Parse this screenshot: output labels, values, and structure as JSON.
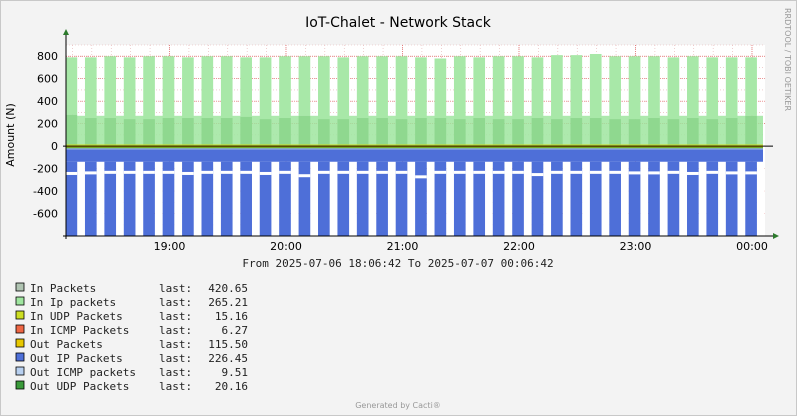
{
  "chart_data": {
    "type": "area",
    "title": "IoT-Chalet - Network Stack",
    "ylabel": "Amount (N)",
    "ylim": [
      -800,
      900
    ],
    "y_ticks": [
      "800",
      "600",
      "400",
      "200",
      "0",
      "-200",
      "-400",
      "-600"
    ],
    "y_tick_values": [
      800,
      600,
      400,
      200,
      0,
      -200,
      -400,
      -600
    ],
    "x_ticks": [
      "19:00",
      "20:00",
      "21:00",
      "22:00",
      "23:00",
      "00:00"
    ],
    "x_tick_hours": [
      19,
      20,
      21,
      22,
      23,
      24
    ],
    "x_range_hours": [
      18.1117,
      24.1117
    ],
    "time_range_text": "From 2025-07-06 18:06:42 To 2025-07-07 00:06:42",
    "grid": true,
    "pulses": {
      "count": 36,
      "start_hour": 18.125,
      "period_hours": 0.1667,
      "in_packets_peaks": [
        790,
        790,
        800,
        790,
        800,
        800,
        790,
        800,
        800,
        790,
        790,
        800,
        800,
        800,
        790,
        800,
        800,
        800,
        790,
        780,
        800,
        790,
        800,
        800,
        790,
        810,
        810,
        820,
        800,
        800,
        800,
        790,
        800,
        790,
        790,
        790
      ],
      "in_ip_peaks": [
        280,
        250,
        250,
        240,
        240,
        250,
        250,
        250,
        250,
        260,
        240,
        250,
        270,
        240,
        240,
        250,
        250,
        240,
        250,
        250,
        240,
        250,
        240,
        240,
        250,
        240,
        250,
        250,
        240,
        240,
        250,
        240,
        250,
        240,
        250,
        270
      ],
      "out_ip_troughs": [
        -230,
        -225,
        -220,
        -220,
        -220,
        -220,
        -230,
        -220,
        -220,
        -220,
        -230,
        -220,
        -250,
        -220,
        -220,
        -220,
        -220,
        -220,
        -260,
        -220,
        -220,
        -220,
        -220,
        -220,
        -240,
        -220,
        -220,
        -220,
        -220,
        -225,
        -225,
        -220,
        -230,
        -220,
        -225,
        -225
      ]
    },
    "series": [
      {
        "name": "In Packets",
        "last": "420.65",
        "color": "#b0c4b2"
      },
      {
        "name": "In Ip packets",
        "last": "265.21",
        "color": "#9fe59f"
      },
      {
        "name": "In UDP Packets",
        "last": "15.16",
        "color": "#ccdd22"
      },
      {
        "name": "In ICMP Packets",
        "last": "6.27",
        "color": "#ee6644"
      },
      {
        "name": "Out Packets",
        "last": "115.50",
        "color": "#e8c800"
      },
      {
        "name": "Out IP Packets",
        "last": "226.45",
        "color": "#4e6fd8"
      },
      {
        "name": "Out ICMP packets",
        "last": "9.51",
        "color": "#b8d0f0"
      },
      {
        "name": "Out UDP Packets",
        "last": "20.16",
        "color": "#3a9a3a"
      }
    ],
    "legend_position": "bottom-left"
  },
  "legend": {
    "last_label": "last:"
  },
  "side_text": "RRDTOOL / TOBI OETIKER",
  "footer": "Generated by Cacti®"
}
